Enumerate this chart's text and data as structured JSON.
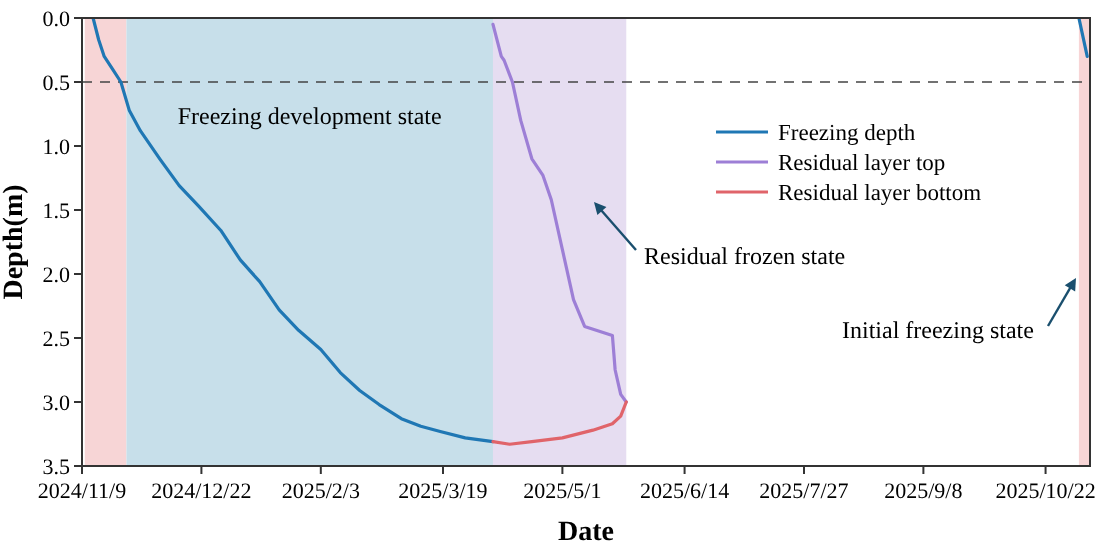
{
  "chart_data": {
    "type": "line",
    "xlabel": "Date",
    "ylabel": "Depth(m)",
    "xlim": [
      "2024-11-09",
      "2025-11-07"
    ],
    "xticks": [
      {
        "value": "2024-11-09",
        "label": "2024/11/9"
      },
      {
        "value": "2024-12-22",
        "label": "2024/12/22"
      },
      {
        "value": "2025-02-03",
        "label": "2025/2/3"
      },
      {
        "value": "2025-03-19",
        "label": "2025/3/19"
      },
      {
        "value": "2025-05-01",
        "label": "2025/5/1"
      },
      {
        "value": "2025-06-14",
        "label": "2025/6/14"
      },
      {
        "value": "2025-07-27",
        "label": "2025/7/27"
      },
      {
        "value": "2025-09-08",
        "label": "2025/9/8"
      },
      {
        "value": "2025-10-22",
        "label": "2025/10/22"
      }
    ],
    "ylim": [
      3.5,
      0
    ],
    "yticks": [
      {
        "value": 0,
        "label": "0.0"
      },
      {
        "value": 0.5,
        "label": "0.5"
      },
      {
        "value": 1,
        "label": "1.0"
      },
      {
        "value": 1.5,
        "label": "1.5"
      },
      {
        "value": 2,
        "label": "2.0"
      },
      {
        "value": 2.5,
        "label": "2.5"
      },
      {
        "value": 3,
        "label": "3.0"
      },
      {
        "value": 3.5,
        "label": "3.5"
      }
    ],
    "series": [
      {
        "name": "Freezing depth",
        "color": "#1f77b4",
        "x": [
          "2024-11-13",
          "2024-11-15",
          "2024-11-17",
          "2024-11-20",
          "2024-11-23",
          "2024-11-26",
          "2024-11-30",
          "2024-12-07",
          "2024-12-14",
          "2024-12-21",
          "2024-12-29",
          "2025-01-05",
          "2025-01-12",
          "2025-01-19",
          "2025-01-26",
          "2025-02-03",
          "2025-02-10",
          "2025-02-17",
          "2025-02-24",
          "2025-03-04",
          "2025-03-11",
          "2025-03-18",
          "2025-03-27",
          "2025-04-06",
          "2025-04-20",
          "2025-11-03",
          "2025-11-06"
        ],
        "values": [
          0,
          0.17,
          0.3,
          0.4,
          0.5,
          0.72,
          0.88,
          1.1,
          1.31,
          1.47,
          1.66,
          1.89,
          2.06,
          2.28,
          2.44,
          2.59,
          2.77,
          2.91,
          3.02,
          3.13,
          3.19,
          3.23,
          3.28,
          3.31,
          null,
          0,
          0.3
        ]
      },
      {
        "name": "Residual layer top",
        "color": "#9d7fd6",
        "x": [
          "2025-04-06",
          "2025-04-09",
          "2025-04-10",
          "2025-04-13",
          "2025-04-16",
          "2025-04-20",
          "2025-04-24",
          "2025-04-27",
          "2025-05-01",
          "2025-05-05",
          "2025-05-09",
          "2025-05-19",
          "2025-05-20",
          "2025-05-22",
          "2025-05-24"
        ],
        "values": [
          0.05,
          0.3,
          0.33,
          0.5,
          0.8,
          1.1,
          1.23,
          1.42,
          1.81,
          2.2,
          2.41,
          2.48,
          2.75,
          2.94,
          3.0
        ]
      },
      {
        "name": "Residual layer bottom",
        "color": "#e0646a",
        "x": [
          "2025-04-06",
          "2025-04-12",
          "2025-04-20",
          "2025-05-01",
          "2025-05-12",
          "2025-05-19",
          "2025-05-22",
          "2025-05-24"
        ],
        "values": [
          3.31,
          3.33,
          3.31,
          3.28,
          3.22,
          3.17,
          3.11,
          3.0
        ]
      }
    ],
    "bands": [
      {
        "axis": "x",
        "from": "2024-11-10",
        "to": "2024-11-25",
        "color": "#f7d5d6"
      },
      {
        "axis": "x",
        "from": "2024-11-25",
        "to": "2025-04-06",
        "color": "#c7dfea",
        "label": "Freezing development state"
      },
      {
        "axis": "x",
        "from": "2025-04-06",
        "to": "2025-05-24",
        "color": "#e6ddf1",
        "label": "Residual frozen state"
      },
      {
        "axis": "x",
        "from": "2025-11-03",
        "to": "2025-11-07",
        "color": "#f7d5d6",
        "label": "Initial freezing state"
      }
    ],
    "ref_lines": [
      {
        "axis": "y",
        "value": 0.5,
        "color": "#444444",
        "line_style": "dashed"
      }
    ],
    "legend": "top right",
    "grid": false
  }
}
